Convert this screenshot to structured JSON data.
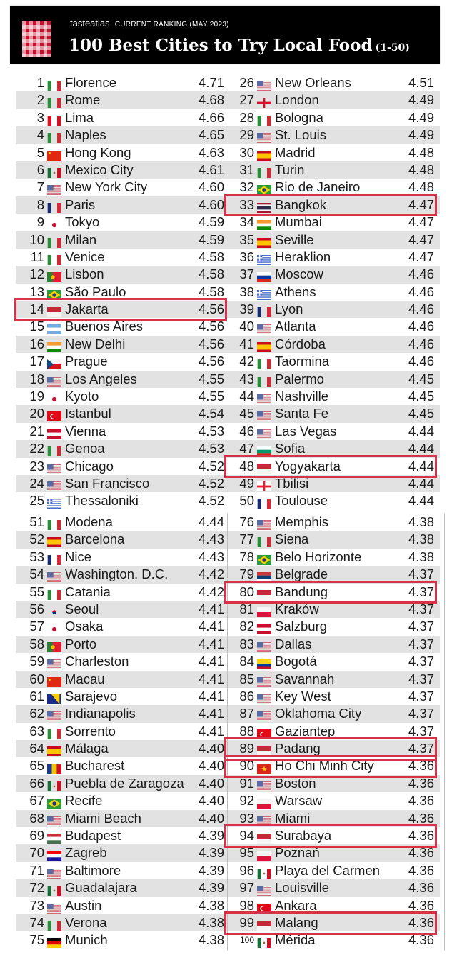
{
  "header": {
    "brand": "tasteatlas",
    "subtitle": "CURRENT RANKING (MAY 2023)",
    "title": "100 Best Cities to Try Local Food",
    "range": "(1-50)"
  },
  "colors": {
    "header_bg": "#000000",
    "row_alt_bg": "#e2e2e2",
    "highlight_border": "#d6324a",
    "logo_red": "#c8102e"
  },
  "highlighted_ranks": [
    14,
    33,
    48,
    80,
    89,
    90,
    94,
    99
  ],
  "rankings": [
    {
      "rank": 1,
      "flag": "it",
      "city": "Florence",
      "score": "4.71"
    },
    {
      "rank": 2,
      "flag": "it",
      "city": "Rome",
      "score": "4.68"
    },
    {
      "rank": 3,
      "flag": "pe",
      "city": "Lima",
      "score": "4.66"
    },
    {
      "rank": 4,
      "flag": "it",
      "city": "Naples",
      "score": "4.65"
    },
    {
      "rank": 5,
      "flag": "cn",
      "city": "Hong Kong",
      "score": "4.63"
    },
    {
      "rank": 6,
      "flag": "mx",
      "city": "Mexico City",
      "score": "4.61"
    },
    {
      "rank": 7,
      "flag": "us",
      "city": "New York City",
      "score": "4.60"
    },
    {
      "rank": 8,
      "flag": "fr",
      "city": "Paris",
      "score": "4.60"
    },
    {
      "rank": 9,
      "flag": "jp",
      "city": "Tokyo",
      "score": "4.59"
    },
    {
      "rank": 10,
      "flag": "it",
      "city": "Milan",
      "score": "4.59"
    },
    {
      "rank": 11,
      "flag": "it",
      "city": "Venice",
      "score": "4.58"
    },
    {
      "rank": 12,
      "flag": "pt",
      "city": "Lisbon",
      "score": "4.58"
    },
    {
      "rank": 13,
      "flag": "br",
      "city": "São Paulo",
      "score": "4.58"
    },
    {
      "rank": 14,
      "flag": "id",
      "city": "Jakarta",
      "score": "4.56"
    },
    {
      "rank": 15,
      "flag": "ar",
      "city": "Buenos Aires",
      "score": "4.56"
    },
    {
      "rank": 16,
      "flag": "in",
      "city": "New Delhi",
      "score": "4.56"
    },
    {
      "rank": 17,
      "flag": "cz",
      "city": "Prague",
      "score": "4.56"
    },
    {
      "rank": 18,
      "flag": "us",
      "city": "Los Angeles",
      "score": "4.55"
    },
    {
      "rank": 19,
      "flag": "jp",
      "city": "Kyoto",
      "score": "4.55"
    },
    {
      "rank": 20,
      "flag": "tr",
      "city": "Istanbul",
      "score": "4.54"
    },
    {
      "rank": 21,
      "flag": "at",
      "city": "Vienna",
      "score": "4.53"
    },
    {
      "rank": 22,
      "flag": "it",
      "city": "Genoa",
      "score": "4.53"
    },
    {
      "rank": 23,
      "flag": "us",
      "city": "Chicago",
      "score": "4.52"
    },
    {
      "rank": 24,
      "flag": "us",
      "city": "San Francisco",
      "score": "4.52"
    },
    {
      "rank": 25,
      "flag": "gr",
      "city": "Thessaloniki",
      "score": "4.52"
    },
    {
      "rank": 26,
      "flag": "us",
      "city": "New Orleans",
      "score": "4.51"
    },
    {
      "rank": 27,
      "flag": "gb-eng",
      "city": "London",
      "score": "4.49"
    },
    {
      "rank": 28,
      "flag": "it",
      "city": "Bologna",
      "score": "4.49"
    },
    {
      "rank": 29,
      "flag": "us",
      "city": "St. Louis",
      "score": "4.49"
    },
    {
      "rank": 30,
      "flag": "es",
      "city": "Madrid",
      "score": "4.48"
    },
    {
      "rank": 31,
      "flag": "it",
      "city": "Turin",
      "score": "4.48"
    },
    {
      "rank": 32,
      "flag": "br",
      "city": "Rio de Janeiro",
      "score": "4.48"
    },
    {
      "rank": 33,
      "flag": "th",
      "city": "Bangkok",
      "score": "4.47"
    },
    {
      "rank": 34,
      "flag": "in",
      "city": "Mumbai",
      "score": "4.47"
    },
    {
      "rank": 35,
      "flag": "es",
      "city": "Seville",
      "score": "4.47"
    },
    {
      "rank": 36,
      "flag": "gr",
      "city": "Heraklion",
      "score": "4.47"
    },
    {
      "rank": 37,
      "flag": "ru",
      "city": "Moscow",
      "score": "4.46"
    },
    {
      "rank": 38,
      "flag": "gr",
      "city": "Athens",
      "score": "4.46"
    },
    {
      "rank": 39,
      "flag": "fr",
      "city": "Lyon",
      "score": "4.46"
    },
    {
      "rank": 40,
      "flag": "us",
      "city": "Atlanta",
      "score": "4.46"
    },
    {
      "rank": 41,
      "flag": "es",
      "city": "Córdoba",
      "score": "4.46"
    },
    {
      "rank": 42,
      "flag": "it",
      "city": "Taormina",
      "score": "4.46"
    },
    {
      "rank": 43,
      "flag": "it",
      "city": "Palermo",
      "score": "4.45"
    },
    {
      "rank": 44,
      "flag": "us",
      "city": "Nashville",
      "score": "4.45"
    },
    {
      "rank": 45,
      "flag": "us",
      "city": "Santa Fe",
      "score": "4.45"
    },
    {
      "rank": 46,
      "flag": "us",
      "city": "Las Vegas",
      "score": "4.44"
    },
    {
      "rank": 47,
      "flag": "bg",
      "city": "Sofia",
      "score": "4.44"
    },
    {
      "rank": 48,
      "flag": "id",
      "city": "Yogyakarta",
      "score": "4.44"
    },
    {
      "rank": 49,
      "flag": "ge",
      "city": "Tbilisi",
      "score": "4.44"
    },
    {
      "rank": 50,
      "flag": "fr",
      "city": "Toulouse",
      "score": "4.44"
    },
    {
      "rank": 51,
      "flag": "it",
      "city": "Modena",
      "score": "4.44"
    },
    {
      "rank": 52,
      "flag": "es",
      "city": "Barcelona",
      "score": "4.43"
    },
    {
      "rank": 53,
      "flag": "fr",
      "city": "Nice",
      "score": "4.43"
    },
    {
      "rank": 54,
      "flag": "us",
      "city": "Washington, D.C.",
      "score": "4.42"
    },
    {
      "rank": 55,
      "flag": "it",
      "city": "Catania",
      "score": "4.42"
    },
    {
      "rank": 56,
      "flag": "kr",
      "city": "Seoul",
      "score": "4.41"
    },
    {
      "rank": 57,
      "flag": "jp",
      "city": "Osaka",
      "score": "4.41"
    },
    {
      "rank": 58,
      "flag": "pt",
      "city": "Porto",
      "score": "4.41"
    },
    {
      "rank": 59,
      "flag": "us",
      "city": "Charleston",
      "score": "4.41"
    },
    {
      "rank": 60,
      "flag": "cn",
      "city": "Macau",
      "score": "4.41"
    },
    {
      "rank": 61,
      "flag": "ba",
      "city": "Sarajevo",
      "score": "4.41"
    },
    {
      "rank": 62,
      "flag": "us",
      "city": "Indianapolis",
      "score": "4.41"
    },
    {
      "rank": 63,
      "flag": "it",
      "city": "Sorrento",
      "score": "4.41"
    },
    {
      "rank": 64,
      "flag": "es",
      "city": "Málaga",
      "score": "4.40"
    },
    {
      "rank": 65,
      "flag": "ro",
      "city": "Bucharest",
      "score": "4.40"
    },
    {
      "rank": 66,
      "flag": "mx",
      "city": "Puebla de Zaragoza",
      "score": "4.40"
    },
    {
      "rank": 67,
      "flag": "br",
      "city": "Recife",
      "score": "4.40"
    },
    {
      "rank": 68,
      "flag": "us",
      "city": "Miami Beach",
      "score": "4.40"
    },
    {
      "rank": 69,
      "flag": "hu",
      "city": "Budapest",
      "score": "4.39"
    },
    {
      "rank": 70,
      "flag": "hr",
      "city": "Zagreb",
      "score": "4.39"
    },
    {
      "rank": 71,
      "flag": "us",
      "city": "Baltimore",
      "score": "4.39"
    },
    {
      "rank": 72,
      "flag": "mx",
      "city": "Guadalajara",
      "score": "4.39"
    },
    {
      "rank": 73,
      "flag": "us",
      "city": "Austin",
      "score": "4.38"
    },
    {
      "rank": 74,
      "flag": "it",
      "city": "Verona",
      "score": "4.38"
    },
    {
      "rank": 75,
      "flag": "de",
      "city": "Munich",
      "score": "4.38"
    },
    {
      "rank": 76,
      "flag": "us",
      "city": "Memphis",
      "score": "4.38"
    },
    {
      "rank": 77,
      "flag": "it",
      "city": "Siena",
      "score": "4.38"
    },
    {
      "rank": 78,
      "flag": "br",
      "city": "Belo Horizonte",
      "score": "4.38"
    },
    {
      "rank": 79,
      "flag": "rs",
      "city": "Belgrade",
      "score": "4.37"
    },
    {
      "rank": 80,
      "flag": "id",
      "city": "Bandung",
      "score": "4.37"
    },
    {
      "rank": 81,
      "flag": "pl",
      "city": "Kraków",
      "score": "4.37"
    },
    {
      "rank": 82,
      "flag": "at",
      "city": "Salzburg",
      "score": "4.37"
    },
    {
      "rank": 83,
      "flag": "us",
      "city": "Dallas",
      "score": "4.37"
    },
    {
      "rank": 84,
      "flag": "co",
      "city": "Bogotá",
      "score": "4.37"
    },
    {
      "rank": 85,
      "flag": "us",
      "city": "Savannah",
      "score": "4.37"
    },
    {
      "rank": 86,
      "flag": "us",
      "city": "Key West",
      "score": "4.37"
    },
    {
      "rank": 87,
      "flag": "us",
      "city": "Oklahoma City",
      "score": "4.37"
    },
    {
      "rank": 88,
      "flag": "tr",
      "city": "Gaziantep",
      "score": "4.37"
    },
    {
      "rank": 89,
      "flag": "id",
      "city": "Padang",
      "score": "4.37"
    },
    {
      "rank": 90,
      "flag": "vn",
      "city": "Ho Chi Minh City",
      "score": "4.36"
    },
    {
      "rank": 91,
      "flag": "us",
      "city": "Boston",
      "score": "4.36"
    },
    {
      "rank": 92,
      "flag": "pl",
      "city": "Warsaw",
      "score": "4.36"
    },
    {
      "rank": 93,
      "flag": "us",
      "city": "Miami",
      "score": "4.36"
    },
    {
      "rank": 94,
      "flag": "id",
      "city": "Surabaya",
      "score": "4.36"
    },
    {
      "rank": 95,
      "flag": "pl",
      "city": "Poznań",
      "score": "4.36"
    },
    {
      "rank": 96,
      "flag": "mx",
      "city": "Playa del Carmen",
      "score": "4.36"
    },
    {
      "rank": 97,
      "flag": "us",
      "city": "Louisville",
      "score": "4.36"
    },
    {
      "rank": 98,
      "flag": "tr",
      "city": "Ankara",
      "score": "4.36"
    },
    {
      "rank": 99,
      "flag": "id",
      "city": "Malang",
      "score": "4.36"
    },
    {
      "rank": 100,
      "flag": "mx",
      "city": "Mérida",
      "score": "4.36"
    }
  ]
}
